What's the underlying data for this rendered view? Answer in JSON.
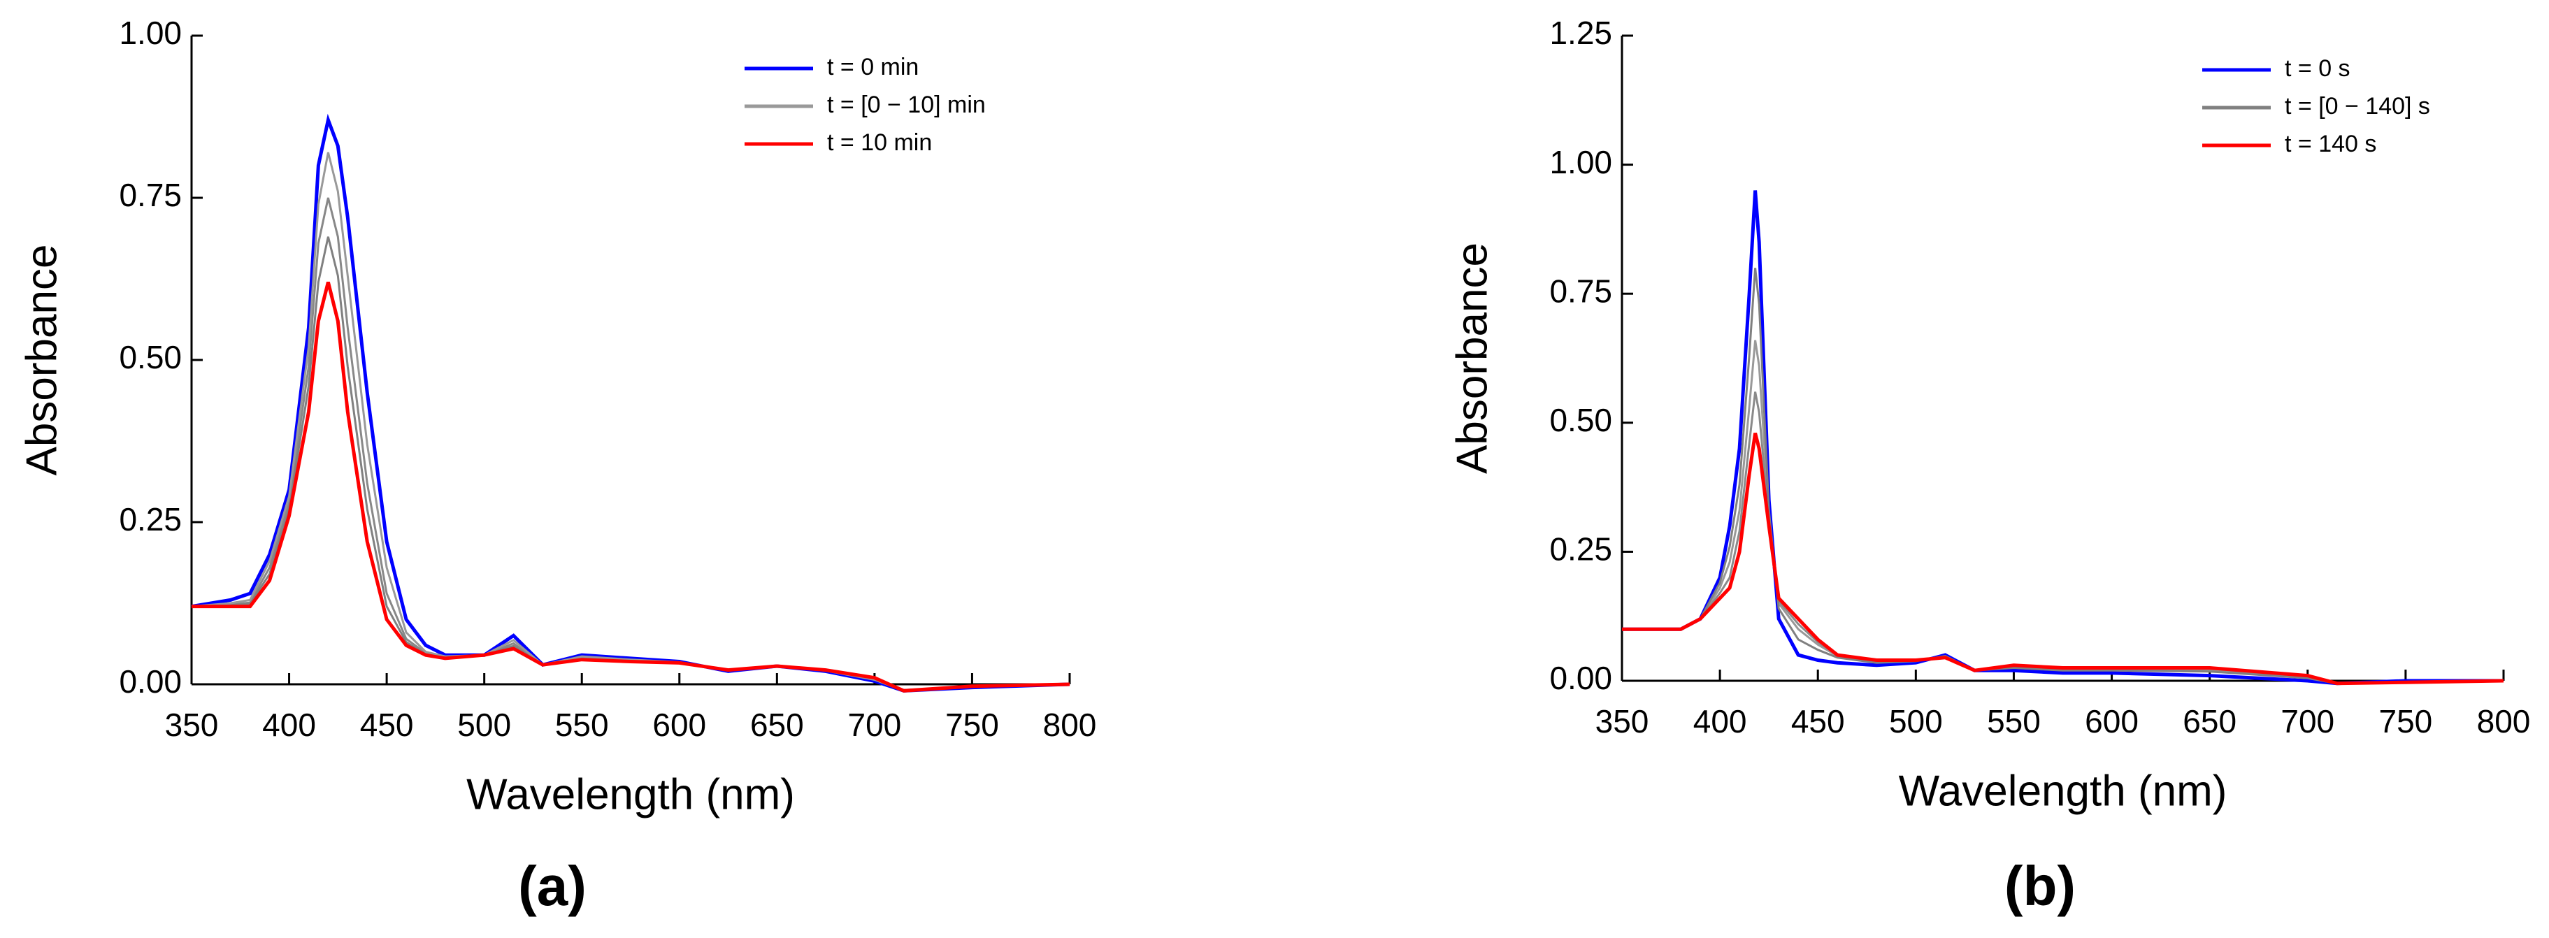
{
  "chart_data": [
    {
      "type": "line",
      "label": "(a)",
      "x_label": "Wavelength (nm)",
      "y_label": "Absorbance",
      "x": [
        350,
        370,
        380,
        390,
        400,
        410,
        415,
        420,
        425,
        430,
        440,
        450,
        460,
        470,
        480,
        500,
        515,
        530,
        550,
        575,
        600,
        625,
        650,
        675,
        700,
        715,
        750,
        800
      ],
      "xlim": [
        350,
        800
      ],
      "xticks": [
        350,
        400,
        450,
        500,
        550,
        600,
        650,
        700,
        750,
        800
      ],
      "ylim": [
        0,
        1
      ],
      "yticks": [
        {
          "value": 0,
          "label": "0.00"
        },
        {
          "value": 0.25,
          "label": "0.25"
        },
        {
          "value": 0.5,
          "label": "0.50"
        },
        {
          "value": 0.75,
          "label": "0.75"
        },
        {
          "value": 1,
          "label": "1.00"
        }
      ],
      "legend": "upper right",
      "series": [
        {
          "name": "t = 0 min",
          "color": "#0000ff",
          "values": [
            0.12,
            0.13,
            0.14,
            0.2,
            0.3,
            0.55,
            0.8,
            0.87,
            0.83,
            0.72,
            0.45,
            0.22,
            0.1,
            0.06,
            0.045,
            0.045,
            0.075,
            0.03,
            0.045,
            0.04,
            0.035,
            0.02,
            0.028,
            0.02,
            0.005,
            -0.01,
            -0.005,
            0
          ]
        },
        {
          "name": "t = [0 − 10] min",
          "color": "#999999",
          "values": [
            0.12,
            0.125,
            0.13,
            0.19,
            0.29,
            0.52,
            0.74,
            0.82,
            0.76,
            0.63,
            0.37,
            0.18,
            0.08,
            0.05,
            0.043,
            0.045,
            0.068,
            0.03,
            0.043,
            0.038,
            0.034,
            0.021,
            0.028,
            0.021,
            0.007,
            -0.01,
            -0.004,
            0
          ]
        },
        {
          "name": "t = 10 min",
          "color": "#ff0000",
          "values": [
            0.12,
            0.12,
            0.12,
            0.16,
            0.26,
            0.42,
            0.56,
            0.62,
            0.56,
            0.42,
            0.22,
            0.1,
            0.06,
            0.045,
            0.04,
            0.045,
            0.055,
            0.03,
            0.038,
            0.035,
            0.033,
            0.022,
            0.028,
            0.022,
            0.01,
            -0.01,
            -0.003,
            0
          ]
        },
        {
          "color": "#888888",
          "values": [
            0.12,
            0.123,
            0.126,
            0.18,
            0.28,
            0.49,
            0.68,
            0.75,
            0.69,
            0.55,
            0.31,
            0.14,
            0.07,
            0.048,
            0.042,
            0.045,
            0.063,
            0.03,
            0.041,
            0.037,
            0.034,
            0.021,
            0.028,
            0.021,
            0.008,
            -0.01,
            -0.004,
            0
          ]
        },
        {
          "color": "#808080",
          "values": [
            0.12,
            0.122,
            0.124,
            0.17,
            0.27,
            0.46,
            0.62,
            0.69,
            0.63,
            0.49,
            0.27,
            0.12,
            0.065,
            0.046,
            0.041,
            0.045,
            0.059,
            0.03,
            0.04,
            0.036,
            0.033,
            0.022,
            0.028,
            0.022,
            0.009,
            -0.01,
            -0.003,
            0
          ]
        }
      ]
    },
    {
      "type": "line",
      "label": "(b)",
      "x_label": "Wavelength (nm)",
      "y_label": "Absorbance",
      "x": [
        350,
        370,
        380,
        390,
        400,
        405,
        410,
        415,
        418,
        420,
        425,
        430,
        440,
        450,
        460,
        480,
        500,
        515,
        530,
        550,
        575,
        600,
        650,
        700,
        715,
        750,
        800
      ],
      "xlim": [
        350,
        800
      ],
      "xticks": [
        350,
        400,
        450,
        500,
        550,
        600,
        650,
        700,
        750,
        800
      ],
      "ylim": [
        0,
        1.25
      ],
      "yticks": [
        {
          "value": 0,
          "label": "0.00"
        },
        {
          "value": 0.25,
          "label": "0.25"
        },
        {
          "value": 0.5,
          "label": "0.50"
        },
        {
          "value": 0.75,
          "label": "0.75"
        },
        {
          "value": 1,
          "label": "1.00"
        },
        {
          "value": 1.25,
          "label": "1.25"
        }
      ],
      "legend": "upper right",
      "series": [
        {
          "name": "t = 0 s",
          "color": "#0000ff",
          "values": [
            0.1,
            0.1,
            0.1,
            0.12,
            0.2,
            0.3,
            0.45,
            0.75,
            0.95,
            0.85,
            0.35,
            0.12,
            0.05,
            0.04,
            0.035,
            0.03,
            0.035,
            0.05,
            0.02,
            0.02,
            0.015,
            0.015,
            0.01,
            0,
            -0.005,
            0,
            0
          ]
        },
        {
          "name": "t = [0 − 140] s",
          "color": "#808080",
          "values": [
            0.1,
            0.1,
            0.1,
            0.12,
            0.19,
            0.26,
            0.38,
            0.63,
            0.8,
            0.73,
            0.33,
            0.14,
            0.08,
            0.06,
            0.045,
            0.035,
            0.038,
            0.048,
            0.02,
            0.025,
            0.02,
            0.02,
            0.018,
            0.005,
            -0.005,
            -0.002,
            0
          ]
        },
        {
          "name": "t = 140 s",
          "color": "#ff0000",
          "values": [
            0.1,
            0.1,
            0.1,
            0.12,
            0.16,
            0.18,
            0.25,
            0.4,
            0.48,
            0.45,
            0.3,
            0.16,
            0.12,
            0.08,
            0.05,
            0.04,
            0.04,
            0.045,
            0.02,
            0.03,
            0.025,
            0.025,
            0.025,
            0.01,
            -0.005,
            -0.003,
            0
          ]
        },
        {
          "color": "#999999",
          "values": [
            0.1,
            0.1,
            0.1,
            0.12,
            0.18,
            0.23,
            0.33,
            0.53,
            0.66,
            0.61,
            0.32,
            0.15,
            0.1,
            0.07,
            0.048,
            0.038,
            0.039,
            0.046,
            0.02,
            0.028,
            0.022,
            0.022,
            0.021,
            0.007,
            -0.005,
            -0.002,
            0
          ]
        },
        {
          "color": "#8a8a8a",
          "values": [
            0.1,
            0.1,
            0.1,
            0.12,
            0.17,
            0.2,
            0.29,
            0.46,
            0.56,
            0.52,
            0.31,
            0.155,
            0.11,
            0.075,
            0.049,
            0.039,
            0.04,
            0.045,
            0.02,
            0.029,
            0.024,
            0.024,
            0.023,
            0.008,
            -0.005,
            -0.003,
            0
          ]
        }
      ]
    }
  ]
}
